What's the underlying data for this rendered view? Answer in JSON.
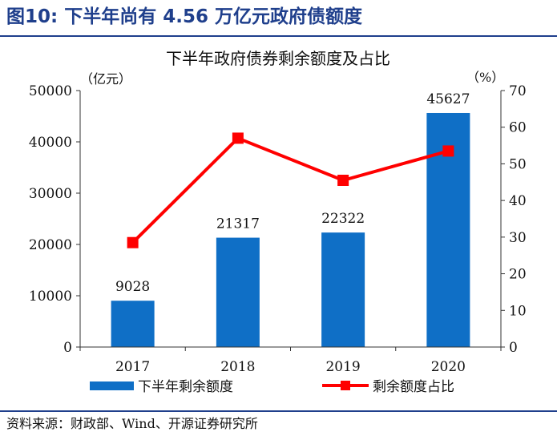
{
  "figure": {
    "number": "图10:",
    "title": "下半年尚有 4.56 万亿元政府债额度"
  },
  "source": "资料来源：财政部、Wind、开源证券研究所",
  "chart_data": {
    "type": "bar",
    "title": "下半年政府债券剩余额度及占比",
    "categories": [
      "2017",
      "2018",
      "2019",
      "2020"
    ],
    "series": [
      {
        "name": "下半年剩余额度",
        "type": "bar",
        "axis": "left",
        "values": [
          9028,
          21317,
          22322,
          45627
        ],
        "color": "#0f6fc6"
      },
      {
        "name": "剩余额度占比",
        "type": "line",
        "axis": "right",
        "values": [
          28.5,
          57,
          45.5,
          53.5
        ],
        "color": "#ff0000"
      }
    ],
    "ylabel_left": "（亿元）",
    "ylabel_right": "（%）",
    "ylim_left": [
      0,
      50000
    ],
    "yticks_left": [
      "0",
      "10000",
      "20000",
      "30000",
      "40000",
      "50000"
    ],
    "ylim_right": [
      0,
      70
    ],
    "yticks_right": [
      "0",
      "10",
      "20",
      "30",
      "40",
      "50",
      "60",
      "70"
    ],
    "data_labels": [
      "9028",
      "21317",
      "22322",
      "45627"
    ],
    "legend_position": "bottom",
    "grid": false
  }
}
